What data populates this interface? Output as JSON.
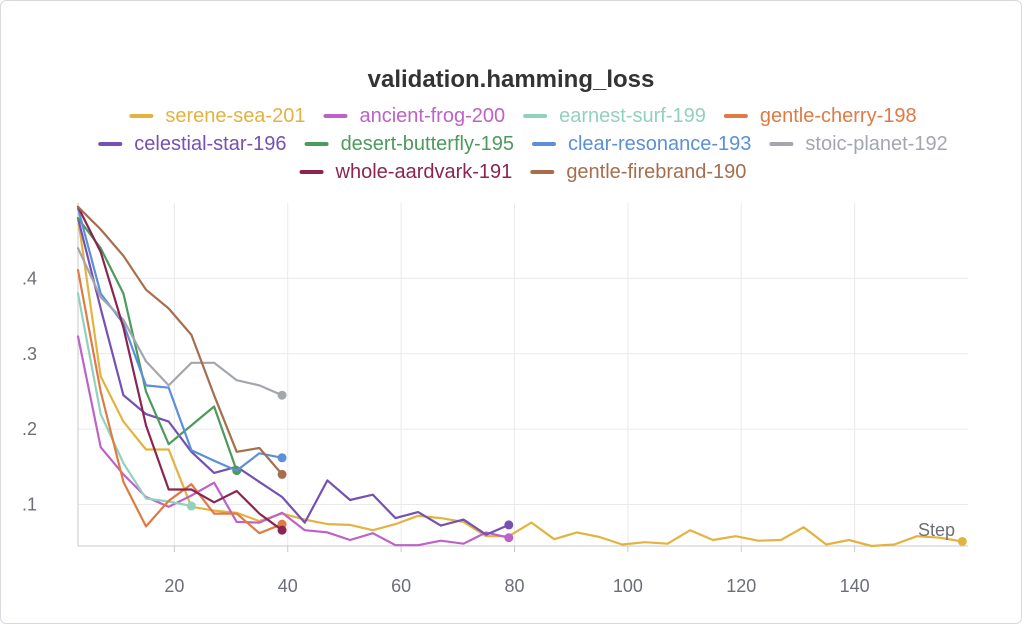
{
  "chart_data": {
    "type": "line",
    "title": "validation.hamming_loss",
    "xlabel": "Step",
    "ylabel": "",
    "xlim": [
      3,
      160
    ],
    "ylim": [
      0.045,
      0.5
    ],
    "x_ticks": [
      20,
      40,
      60,
      80,
      100,
      120,
      140
    ],
    "x_tick_labels": [
      "20",
      "40",
      "60",
      "80",
      "100",
      "120",
      "140"
    ],
    "y_ticks": [
      0.1,
      0.2,
      0.3,
      0.4
    ],
    "y_tick_labels": [
      ".1",
      ".2",
      ".3",
      ".4"
    ],
    "grid": true,
    "legend_position": "top",
    "series": [
      {
        "name": "serene-sea-201",
        "color": "#e3b341",
        "x": [
          3,
          7,
          11,
          15,
          19,
          23,
          27,
          31,
          35,
          39,
          43,
          47,
          51,
          55,
          59,
          63,
          67,
          71,
          75,
          79,
          83,
          87,
          91,
          95,
          99,
          103,
          107,
          111,
          115,
          119,
          123,
          127,
          131,
          135,
          139,
          143,
          147,
          151,
          155,
          159
        ],
        "y": [
          0.48,
          0.27,
          0.21,
          0.173,
          0.173,
          0.097,
          0.092,
          0.089,
          0.078,
          0.088,
          0.08,
          0.074,
          0.073,
          0.066,
          0.074,
          0.085,
          0.082,
          0.077,
          0.058,
          0.058,
          0.076,
          0.054,
          0.063,
          0.057,
          0.047,
          0.05,
          0.048,
          0.066,
          0.053,
          0.058,
          0.052,
          0.053,
          0.07,
          0.047,
          0.053,
          0.045,
          0.047,
          0.058,
          0.056,
          0.051
        ]
      },
      {
        "name": "ancient-frog-200",
        "color": "#bd62c7",
        "x": [
          3,
          7,
          11,
          15,
          19,
          23,
          27,
          31,
          35,
          39,
          43,
          47,
          51,
          55,
          59,
          63,
          67,
          71,
          75,
          79
        ],
        "y": [
          0.323,
          0.176,
          0.14,
          0.11,
          0.097,
          0.112,
          0.129,
          0.077,
          0.076,
          0.089,
          0.066,
          0.063,
          0.053,
          0.062,
          0.046,
          0.046,
          0.052,
          0.048,
          0.063,
          0.056
        ]
      },
      {
        "name": "earnest-surf-199",
        "color": "#92d1bd",
        "x": [
          3,
          7,
          11,
          15,
          19,
          23
        ],
        "y": [
          0.38,
          0.22,
          0.155,
          0.108,
          0.104,
          0.098
        ]
      },
      {
        "name": "gentle-cherry-198",
        "color": "#e07a45",
        "x": [
          3,
          7,
          11,
          15,
          19,
          23,
          27,
          31,
          35,
          39
        ],
        "y": [
          0.411,
          0.25,
          0.13,
          0.071,
          0.105,
          0.127,
          0.088,
          0.088,
          0.062,
          0.074
        ]
      },
      {
        "name": "celestial-star-196",
        "color": "#7451b2",
        "x": [
          3,
          7,
          11,
          15,
          19,
          23,
          27,
          31,
          35,
          39,
          43,
          47,
          51,
          55,
          59,
          63,
          67,
          71,
          75,
          79
        ],
        "y": [
          0.48,
          0.36,
          0.245,
          0.22,
          0.21,
          0.17,
          0.142,
          0.15,
          0.13,
          0.11,
          0.076,
          0.132,
          0.106,
          0.113,
          0.082,
          0.09,
          0.072,
          0.08,
          0.06,
          0.073
        ]
      },
      {
        "name": "desert-butterfly-195",
        "color": "#4c9a5c",
        "x": [
          3,
          7,
          11,
          15,
          19,
          23,
          27,
          31
        ],
        "y": [
          0.48,
          0.44,
          0.38,
          0.25,
          0.18,
          0.205,
          0.23,
          0.145
        ]
      },
      {
        "name": "clear-resonance-193",
        "color": "#5c8fd8",
        "x": [
          3,
          7,
          11,
          15,
          19,
          23,
          27,
          31,
          35,
          39
        ],
        "y": [
          0.493,
          0.38,
          0.34,
          0.258,
          0.255,
          0.172,
          0.158,
          0.145,
          0.168,
          0.162
        ]
      },
      {
        "name": "stoic-planet-192",
        "color": "#a3a7ad",
        "x": [
          3,
          7,
          11,
          15,
          19,
          23,
          27,
          31,
          35,
          39
        ],
        "y": [
          0.44,
          0.375,
          0.345,
          0.29,
          0.258,
          0.288,
          0.288,
          0.265,
          0.258,
          0.245
        ]
      },
      {
        "name": "whole-aardvark-191",
        "color": "#8b2550",
        "x": [
          3,
          7,
          11,
          15,
          19,
          23,
          27,
          31,
          35,
          39
        ],
        "y": [
          0.495,
          0.435,
          0.335,
          0.205,
          0.12,
          0.12,
          0.103,
          0.118,
          0.088,
          0.066
        ]
      },
      {
        "name": "gentle-firebrand-190",
        "color": "#a66e4e",
        "x": [
          3,
          7,
          11,
          15,
          19,
          23,
          27,
          31,
          35,
          39
        ],
        "y": [
          0.495,
          0.465,
          0.43,
          0.385,
          0.36,
          0.325,
          0.245,
          0.17,
          0.175,
          0.14
        ]
      }
    ]
  }
}
